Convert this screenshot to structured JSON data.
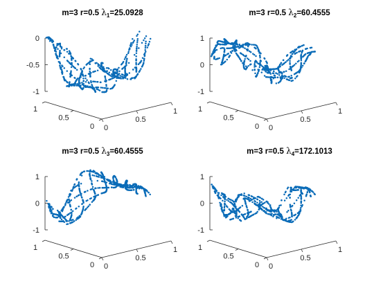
{
  "chart_data": [
    {
      "type": "scatter",
      "title": {
        "prefix": "m=3 r=0.5 ",
        "symbol": "λ",
        "sub": "1",
        "suffix": "=25.0928"
      },
      "zlim": [
        -1,
        0
      ],
      "zticks": [
        "0",
        "-0.5",
        "-1"
      ],
      "xticks": [
        "0",
        "0.5",
        "1"
      ],
      "yticks": [
        "1",
        "0.5",
        "0"
      ],
      "color": "#0b6cb8",
      "shape_profile": [
        0.0,
        -0.15,
        -0.55,
        -0.95,
        -1.0,
        -0.9,
        -0.6,
        -0.75,
        -0.85,
        -0.6,
        -0.1
      ]
    },
    {
      "type": "scatter",
      "title": {
        "prefix": "m=3 r=0.5 ",
        "symbol": "λ",
        "sub": "2",
        "suffix": "=60.4555"
      },
      "zlim": [
        -1,
        1
      ],
      "zticks": [
        "1",
        "0",
        "-1"
      ],
      "xticks": [
        "0",
        "0.5",
        "1"
      ],
      "yticks": [
        "1",
        "0.5",
        "0"
      ],
      "color": "#0b6cb8",
      "shape_profile": [
        0.2,
        0.7,
        0.8,
        0.7,
        0.1,
        -0.6,
        -0.3,
        -0.6,
        -0.4,
        0.1,
        0.3
      ]
    },
    {
      "type": "scatter",
      "title": {
        "prefix": "m=3 r=0.5 ",
        "symbol": "λ",
        "sub": "3",
        "suffix": "=60.4555"
      },
      "zlim": [
        -1,
        1
      ],
      "zticks": [
        "1",
        "0",
        "-1"
      ],
      "xticks": [
        "0",
        "0.5",
        "1"
      ],
      "yticks": [
        "1",
        "0.5",
        "0"
      ],
      "color": "#0b6cb8",
      "shape_profile": [
        0.0,
        -0.6,
        -0.5,
        0.0,
        0.4,
        0.7,
        0.8,
        0.7,
        0.5,
        0.3,
        0.1
      ]
    },
    {
      "type": "scatter",
      "title": {
        "prefix": "m=3 r=0.5 ",
        "symbol": "λ",
        "sub": "4",
        "suffix": "=172.1013"
      },
      "zlim": [
        -1,
        1
      ],
      "zticks": [
        "1",
        "0",
        "-1"
      ],
      "xticks": [
        "0",
        "0.5",
        "1"
      ],
      "yticks": [
        "1",
        "0.5",
        "0"
      ],
      "color": "#0b6cb8",
      "shape_profile": [
        0.6,
        0.2,
        -0.6,
        -0.4,
        0.1,
        -0.2,
        -0.5,
        -0.7,
        -0.5,
        0.3,
        0.1
      ]
    }
  ]
}
